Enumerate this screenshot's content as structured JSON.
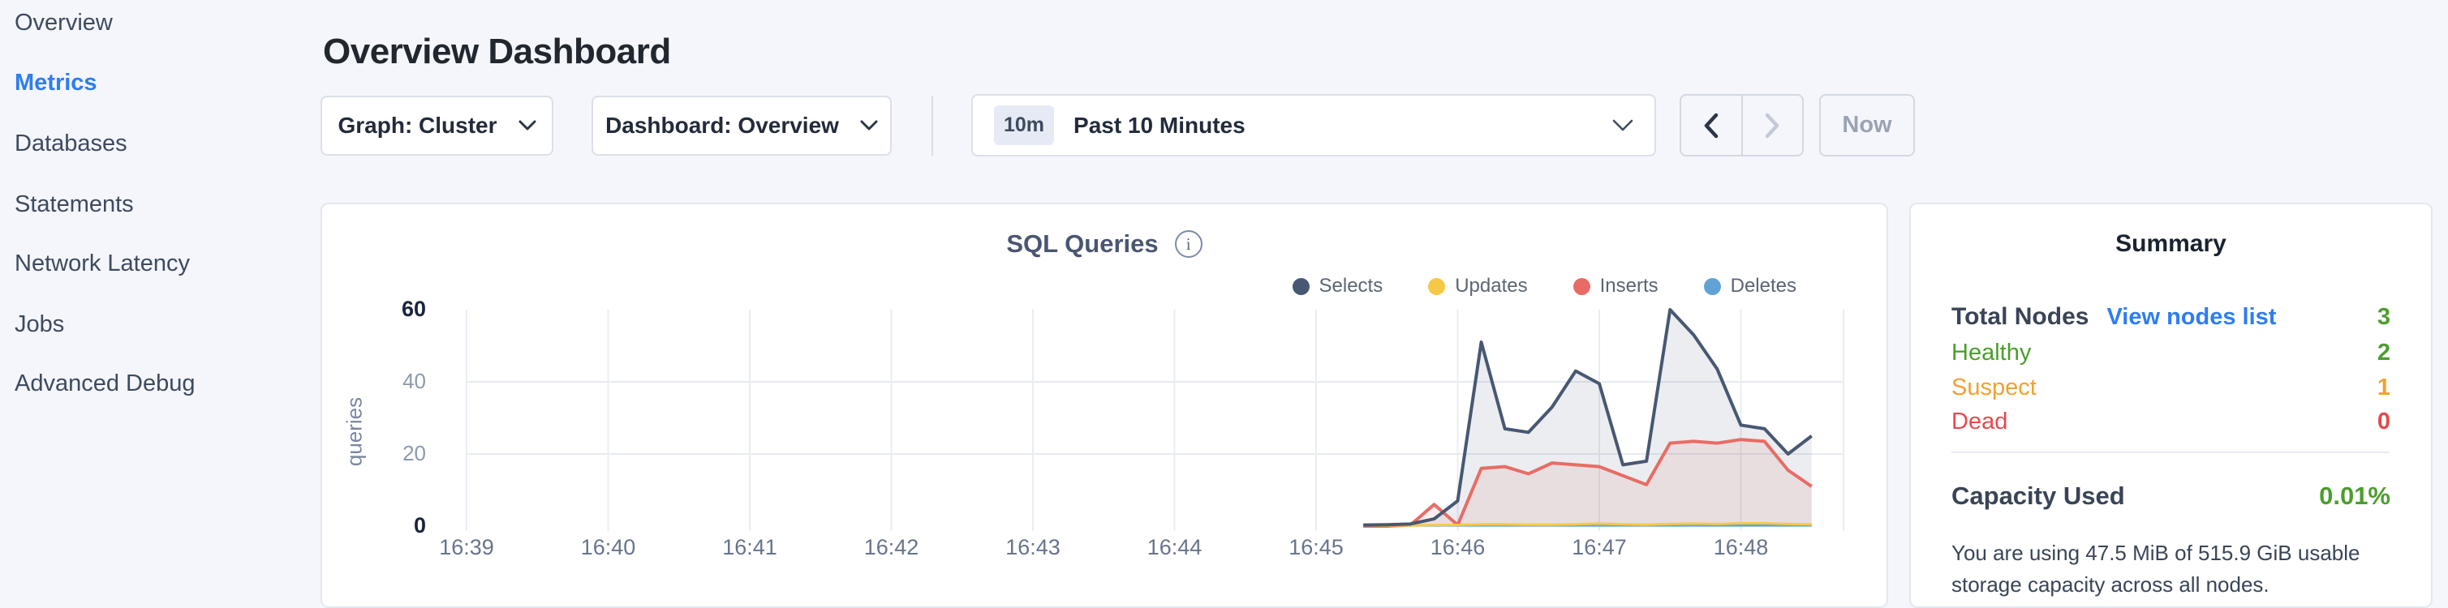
{
  "colors": {
    "accent_blue": "#2e7df0",
    "green": "#4b9e2d",
    "orange": "#f0a22e",
    "red": "#e5494d",
    "card_background": "#ffffff",
    "page_background": "#f4f6fb"
  },
  "sidebar": {
    "items": [
      {
        "label": "Overview",
        "active": false
      },
      {
        "label": "Metrics",
        "active": true
      },
      {
        "label": "Databases",
        "active": false
      },
      {
        "label": "Statements",
        "active": false
      },
      {
        "label": "Network Latency",
        "active": false
      },
      {
        "label": "Jobs",
        "active": false
      },
      {
        "label": "Advanced Debug",
        "active": false
      }
    ]
  },
  "header": {
    "title": "Overview Dashboard"
  },
  "toolbar": {
    "graph_dropdown": {
      "label": "Graph: Cluster",
      "icon": "chevron-down"
    },
    "dashboard_dropdown": {
      "label": "Dashboard: Overview",
      "icon": "chevron-down"
    },
    "time_selector": {
      "badge": "10m",
      "label": "Past 10 Minutes",
      "icon": "chevron-down"
    },
    "prev_button": {
      "icon": "chevron-left",
      "enabled": true
    },
    "next_button": {
      "icon": "chevron-right",
      "enabled": false
    },
    "now_button": {
      "label": "Now",
      "enabled": false
    }
  },
  "chart_card": {
    "title": "SQL Queries",
    "info_glyph": "i"
  },
  "chart_data": {
    "type": "area",
    "title": "SQL Queries",
    "xlabel": "",
    "ylabel": "queries",
    "ylim": [
      0,
      60
    ],
    "y_ticks": [
      0,
      20,
      40,
      60
    ],
    "x_ticks": [
      "16:39",
      "16:40",
      "16:41",
      "16:42",
      "16:43",
      "16:44",
      "16:45",
      "16:46",
      "16:47",
      "16:48"
    ],
    "grid": true,
    "legend_position": "top-right",
    "times": [
      "16:45:20",
      "16:45:30",
      "16:45:40",
      "16:45:50",
      "16:46:00",
      "16:46:10",
      "16:46:20",
      "16:46:30",
      "16:46:40",
      "16:46:50",
      "16:47:00",
      "16:47:10",
      "16:47:20",
      "16:47:30",
      "16:47:40",
      "16:47:50",
      "16:48:00",
      "16:48:10",
      "16:48:20",
      "16:48:30"
    ],
    "series": [
      {
        "name": "Selects",
        "color": "#475872",
        "fill": true,
        "values": [
          0.3,
          0.4,
          0.6,
          2,
          7,
          51,
          27,
          26,
          33,
          43,
          39.5,
          17,
          18,
          60,
          53,
          43.5,
          28,
          27,
          20,
          25
        ]
      },
      {
        "name": "Updates",
        "color": "#f6c944",
        "fill": false,
        "values": [
          0.2,
          0.2,
          0.2,
          0.3,
          0.3,
          0.5,
          0.5,
          0.4,
          0.4,
          0.5,
          0.7,
          0.5,
          0.4,
          0.6,
          0.7,
          0.6,
          0.8,
          0.8,
          0.6,
          0.5
        ]
      },
      {
        "name": "Inserts",
        "color": "#e86c65",
        "fill": true,
        "values": [
          0,
          0,
          0.3,
          6,
          0.3,
          16,
          16.5,
          14.5,
          17.5,
          17,
          16.5,
          14,
          11.5,
          23,
          23.5,
          23,
          24,
          23.5,
          15.5,
          11
        ]
      },
      {
        "name": "Deletes",
        "color": "#61a2d7",
        "fill": false,
        "values": [
          0.2,
          0.2,
          0.2,
          0.2,
          0.2,
          0.2,
          0.2,
          0.2,
          0.2,
          0.2,
          0.2,
          0.2,
          0.2,
          0.2,
          0.2,
          0.2,
          0.2,
          0.2,
          0.2,
          0.2
        ]
      }
    ]
  },
  "summary": {
    "title": "Summary",
    "total_nodes_label": "Total Nodes",
    "view_nodes_link": "View nodes list",
    "total_nodes_value": "3",
    "rows": [
      {
        "label": "Healthy",
        "value": "2",
        "color": "#4b9e2d"
      },
      {
        "label": "Suspect",
        "value": "1",
        "color": "#f0a22e"
      },
      {
        "label": "Dead",
        "value": "0",
        "color": "#e5494d"
      }
    ],
    "capacity_label": "Capacity Used",
    "capacity_value": "0.01%",
    "capacity_description": "You are using 47.5 MiB of 515.9 GiB usable storage capacity across all nodes."
  }
}
